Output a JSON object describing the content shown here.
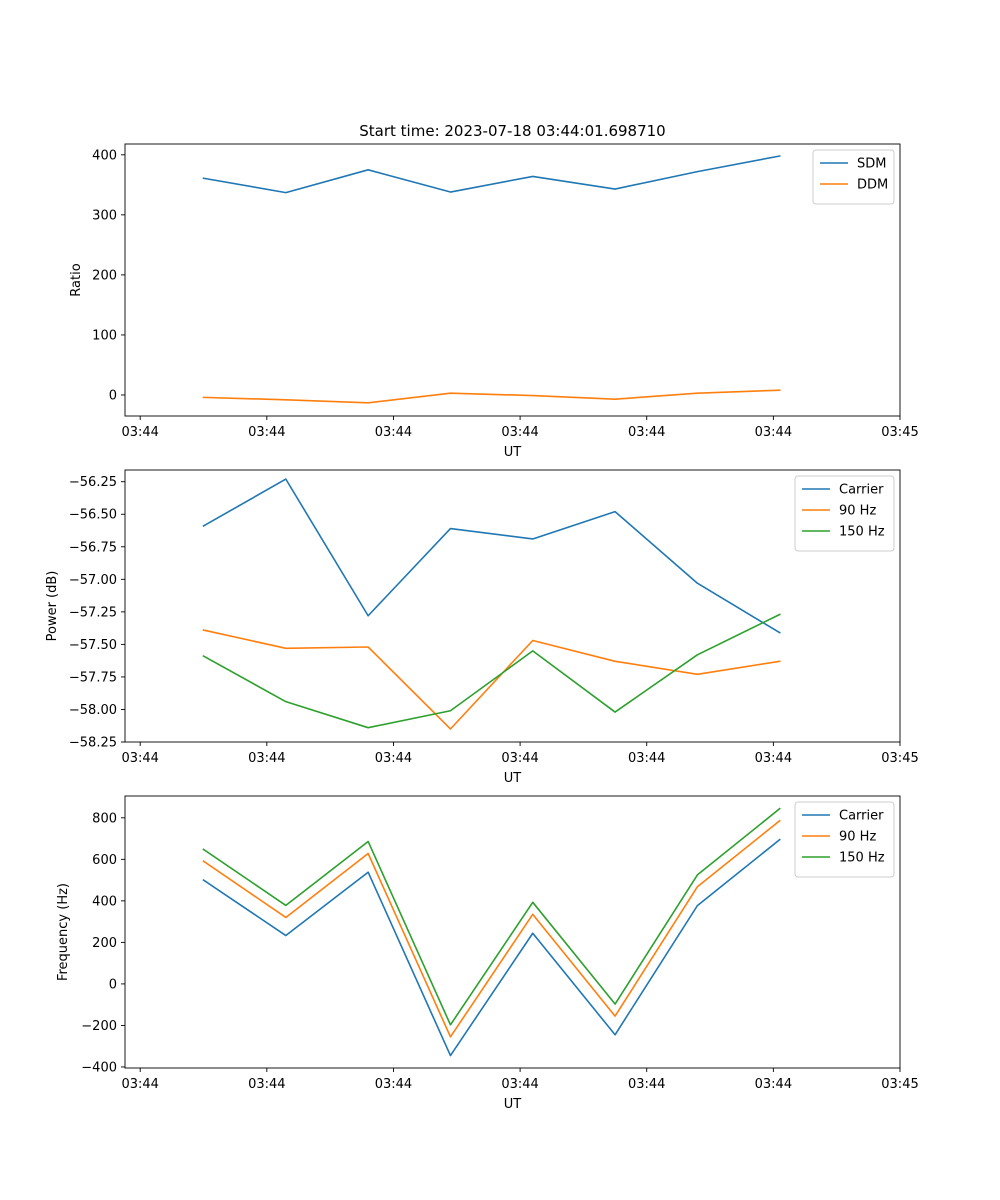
{
  "figure": {
    "title": "Start time: 2023-07-18 03:44:01.698710"
  },
  "chart_data": [
    {
      "type": "line",
      "title": "Start time: 2023-07-18 03:44:01.698710",
      "xlabel": "UT",
      "ylabel": "Ratio",
      "x_tick_labels": [
        "03:44",
        "03:44",
        "03:44",
        "03:44",
        "03:44",
        "03:44",
        "03:45"
      ],
      "x_tick_values": [
        0,
        1,
        2,
        3,
        4,
        5,
        6
      ],
      "xlim": [
        -0.12,
        6.0
      ],
      "ylim": [
        -35,
        418
      ],
      "y_ticks": [
        0,
        100,
        200,
        300,
        400
      ],
      "y_tick_labels": [
        "0",
        "100",
        "200",
        "300",
        "400"
      ],
      "x": [
        0.5,
        1.15,
        1.8,
        2.45,
        3.1,
        3.75,
        4.4,
        5.05
      ],
      "legend_position": "upper right",
      "series": [
        {
          "name": "SDM",
          "color": "#1f77b4",
          "values": [
            361,
            337,
            375,
            338,
            364,
            343,
            372,
            398
          ]
        },
        {
          "name": "DDM",
          "color": "#ff7f0e",
          "values": [
            -4,
            -8,
            -13,
            3,
            -1,
            -7,
            3,
            8
          ]
        }
      ]
    },
    {
      "type": "line",
      "title": "",
      "xlabel": "UT",
      "ylabel": "Power (dB)",
      "x_tick_labels": [
        "03:44",
        "03:44",
        "03:44",
        "03:44",
        "03:44",
        "03:44",
        "03:45"
      ],
      "x_tick_values": [
        0,
        1,
        2,
        3,
        4,
        5,
        6
      ],
      "xlim": [
        -0.12,
        6.0
      ],
      "ylim": [
        -58.25,
        -56.16
      ],
      "y_ticks": [
        -58.25,
        -58.0,
        -57.75,
        -57.5,
        -57.25,
        -57.0,
        -56.75,
        -56.5,
        -56.25
      ],
      "y_tick_labels": [
        "−58.25",
        "−58.00",
        "−57.75",
        "−57.50",
        "−57.25",
        "−57.00",
        "−56.75",
        "−56.50",
        "−56.25"
      ],
      "x": [
        0.5,
        1.15,
        1.8,
        2.45,
        3.1,
        3.75,
        4.4,
        5.05
      ],
      "legend_position": "upper right",
      "series": [
        {
          "name": "Carrier",
          "color": "#1f77b4",
          "values": [
            -56.59,
            -56.23,
            -57.28,
            -56.61,
            -56.69,
            -56.48,
            -57.03,
            -57.41
          ]
        },
        {
          "name": "90 Hz",
          "color": "#ff7f0e",
          "values": [
            -57.39,
            -57.53,
            -57.52,
            -58.15,
            -57.47,
            -57.63,
            -57.73,
            -57.63
          ]
        },
        {
          "name": "150 Hz",
          "color": "#2ca02c",
          "values": [
            -57.59,
            -57.94,
            -58.14,
            -58.01,
            -57.55,
            -58.02,
            -57.58,
            -57.27
          ]
        }
      ]
    },
    {
      "type": "line",
      "title": "",
      "xlabel": "UT",
      "ylabel": "Frequency (Hz)",
      "x_tick_labels": [
        "03:44",
        "03:44",
        "03:44",
        "03:44",
        "03:44",
        "03:44",
        "03:45"
      ],
      "x_tick_values": [
        0,
        1,
        2,
        3,
        4,
        5,
        6
      ],
      "xlim": [
        -0.12,
        6.0
      ],
      "ylim": [
        -405,
        905
      ],
      "y_ticks": [
        -400,
        -200,
        0,
        200,
        400,
        600,
        800
      ],
      "y_tick_labels": [
        "−400",
        "−200",
        "0",
        "200",
        "400",
        "600",
        "800"
      ],
      "x": [
        0.5,
        1.15,
        1.8,
        2.45,
        3.1,
        3.75,
        4.4,
        5.05
      ],
      "legend_position": "upper right",
      "series": [
        {
          "name": "Carrier",
          "color": "#1f77b4",
          "values": [
            500,
            233,
            538,
            -345,
            244,
            -245,
            377,
            695
          ]
        },
        {
          "name": "90 Hz",
          "color": "#ff7f0e",
          "values": [
            591,
            320,
            628,
            -255,
            335,
            -155,
            468,
            786
          ]
        },
        {
          "name": "150 Hz",
          "color": "#2ca02c",
          "values": [
            648,
            378,
            686,
            -197,
            393,
            -97,
            525,
            844
          ]
        }
      ]
    }
  ]
}
